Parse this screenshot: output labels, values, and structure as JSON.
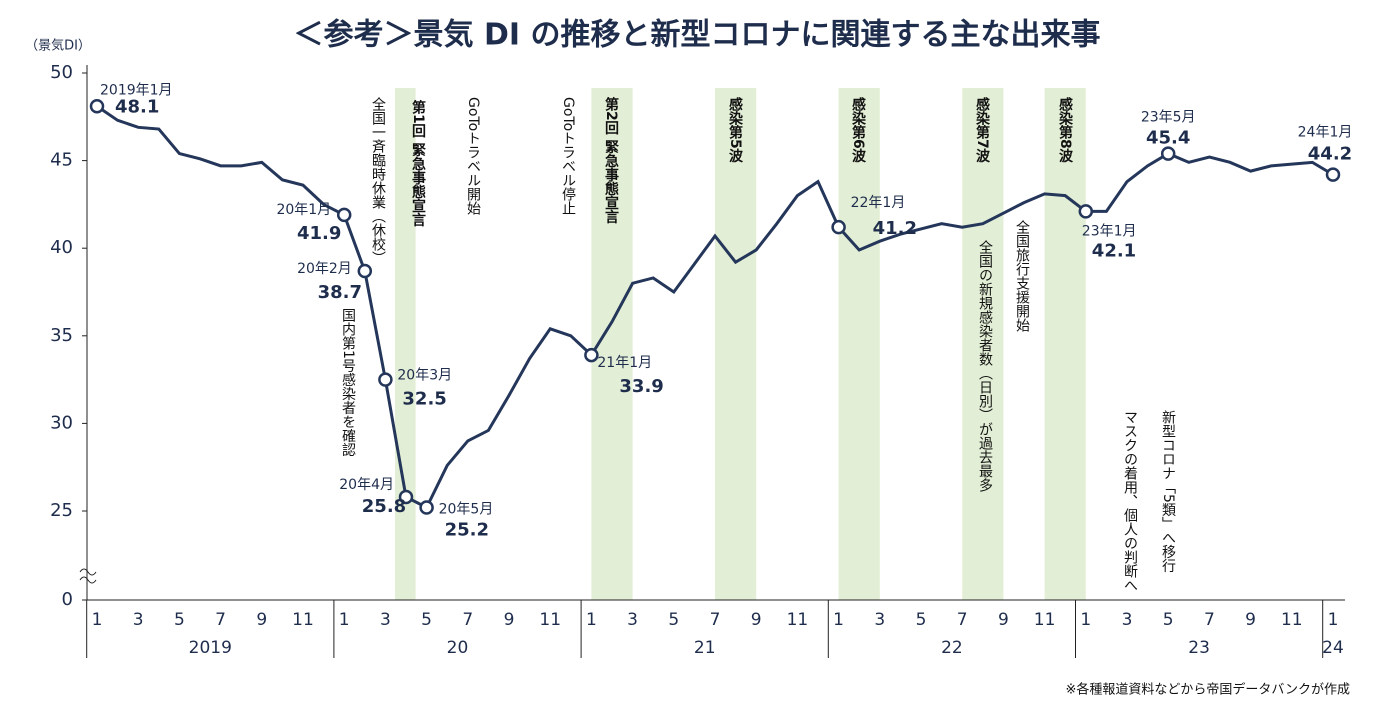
{
  "chart_data": {
    "type": "line",
    "title": "＜参考＞景気 DI の推移と新型コロナに関連する主な出来事",
    "y_label": "（景気DI）",
    "source": "※各種報道資料などから帝国データバンクが作成",
    "categories": [
      "1",
      null,
      "3",
      null,
      "5",
      null,
      "7",
      null,
      "9",
      null,
      "11",
      null,
      "1",
      null,
      "3",
      null,
      "5",
      null,
      "7",
      null,
      "9",
      null,
      "11",
      null,
      "1",
      null,
      "3",
      null,
      "5",
      null,
      "7",
      null,
      "9",
      null,
      "11",
      null,
      "1",
      null,
      "3",
      null,
      "5",
      null,
      "7",
      null,
      "9",
      null,
      "11",
      null,
      "1",
      null,
      "3",
      null,
      "5",
      null,
      "7",
      null,
      "9",
      null,
      "11",
      null,
      "1"
    ],
    "years": [
      "2019",
      "20",
      "21",
      "22",
      "23",
      "24"
    ],
    "series": [
      {
        "name": "景気DI",
        "color": "#24365a",
        "values": [
          48.1,
          47.3,
          46.9,
          46.8,
          45.4,
          45.1,
          44.7,
          44.7,
          44.9,
          43.9,
          43.6,
          42.5,
          41.9,
          38.7,
          32.5,
          25.8,
          25.2,
          27.6,
          29.0,
          29.6,
          31.6,
          33.7,
          35.4,
          35.0,
          33.9,
          35.8,
          38.0,
          38.3,
          37.5,
          39.1,
          40.7,
          39.2,
          39.9,
          41.4,
          43.0,
          43.8,
          41.2,
          39.9,
          40.4,
          40.8,
          41.1,
          41.4,
          41.2,
          41.4,
          42.0,
          42.6,
          43.1,
          43.0,
          42.1,
          42.1,
          43.8,
          44.7,
          45.4,
          44.9,
          45.2,
          44.9,
          44.4,
          44.7,
          44.8,
          44.9,
          44.2
        ]
      }
    ],
    "ylim": [
      0,
      50
    ],
    "y_break": [
      0,
      25
    ],
    "yticks": [
      0,
      25,
      30,
      35,
      40,
      45,
      50
    ],
    "highlights": [
      {
        "index": 0,
        "label": "2019年1月"
      },
      {
        "index": 12,
        "label": "20年1月"
      },
      {
        "index": 13,
        "label": "20年2月"
      },
      {
        "index": 14,
        "label": "20年3月"
      },
      {
        "index": 15,
        "label": "20年4月"
      },
      {
        "index": 16,
        "label": "20年5月"
      },
      {
        "index": 24,
        "label": "21年1月"
      },
      {
        "index": 36,
        "label": "22年1月"
      },
      {
        "index": 48,
        "label": "23年1月"
      },
      {
        "index": 52,
        "label": "23年5月"
      },
      {
        "index": 60,
        "label": "24年1月"
      }
    ],
    "bands": [
      {
        "start": 15,
        "end": 16,
        "label": "第1回 緊急事態宣言"
      },
      {
        "start": 24,
        "end": 26,
        "label": "第2回 緊急事態宣言"
      },
      {
        "start": 30,
        "end": 32,
        "label": "感染第5波"
      },
      {
        "start": 36,
        "end": 38,
        "label": "感染第6波"
      },
      {
        "start": 42,
        "end": 44,
        "label": "感染第7波"
      },
      {
        "start": 46,
        "end": 48,
        "label": "感染第8波"
      }
    ],
    "band_color": "#e2eed5",
    "events": [
      "全国一斉臨時休業（休校）",
      "国内第1号感染者を確認",
      "GoToトラベル開始",
      "GoToトラベル停止",
      "全国の新規感染者数（日別）が過去最多",
      "全国旅行支援開始",
      "マスクの着用、個人の判断へ",
      "新型コロナ「5類」へ移行"
    ]
  }
}
